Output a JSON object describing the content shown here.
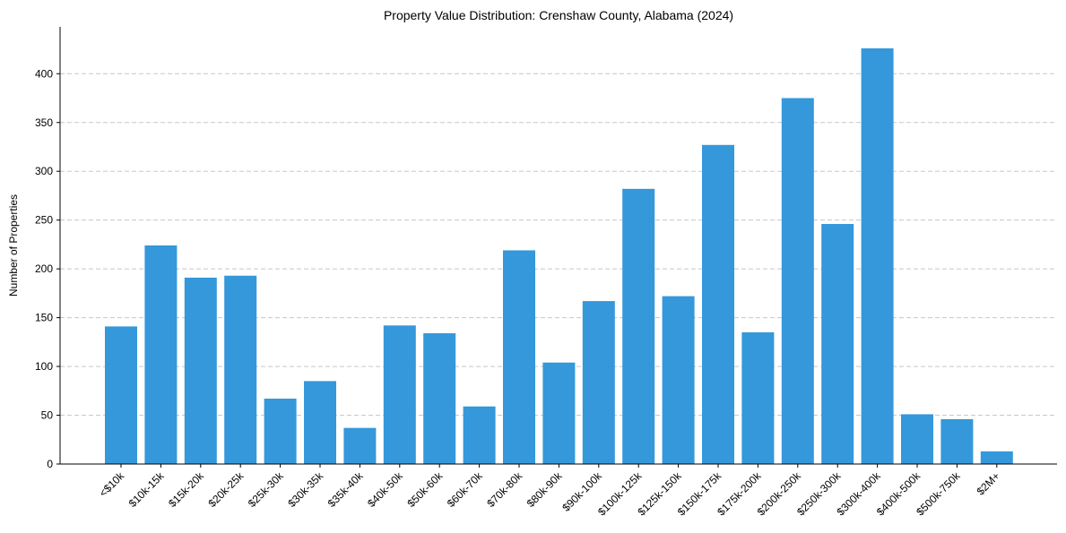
{
  "chart_data": {
    "type": "bar",
    "title": "Property Value Distribution: Crenshaw County, Alabama (2024)",
    "xlabel": "",
    "ylabel": "Number of Properties",
    "ylim": [
      0,
      448
    ],
    "yticks": [
      0,
      50,
      100,
      150,
      200,
      250,
      300,
      350,
      400
    ],
    "grid": "horizontal dashed",
    "categories": [
      "<$10k",
      "$10k-15k",
      "$15k-20k",
      "$20k-25k",
      "$25k-30k",
      "$30k-35k",
      "$35k-40k",
      "$40k-50k",
      "$50k-60k",
      "$60k-70k",
      "$70k-80k",
      "$80k-90k",
      "$90k-100k",
      "$100k-125k",
      "$125k-150k",
      "$150k-175k",
      "$175k-200k",
      "$200k-250k",
      "$250k-300k",
      "$300k-400k",
      "$400k-500k",
      "$500k-750k",
      "$2M+"
    ],
    "values": [
      141,
      224,
      191,
      193,
      67,
      85,
      37,
      142,
      134,
      59,
      219,
      104,
      167,
      282,
      172,
      327,
      135,
      375,
      246,
      426,
      51,
      46,
      13
    ],
    "bar_color": "#3498db"
  }
}
